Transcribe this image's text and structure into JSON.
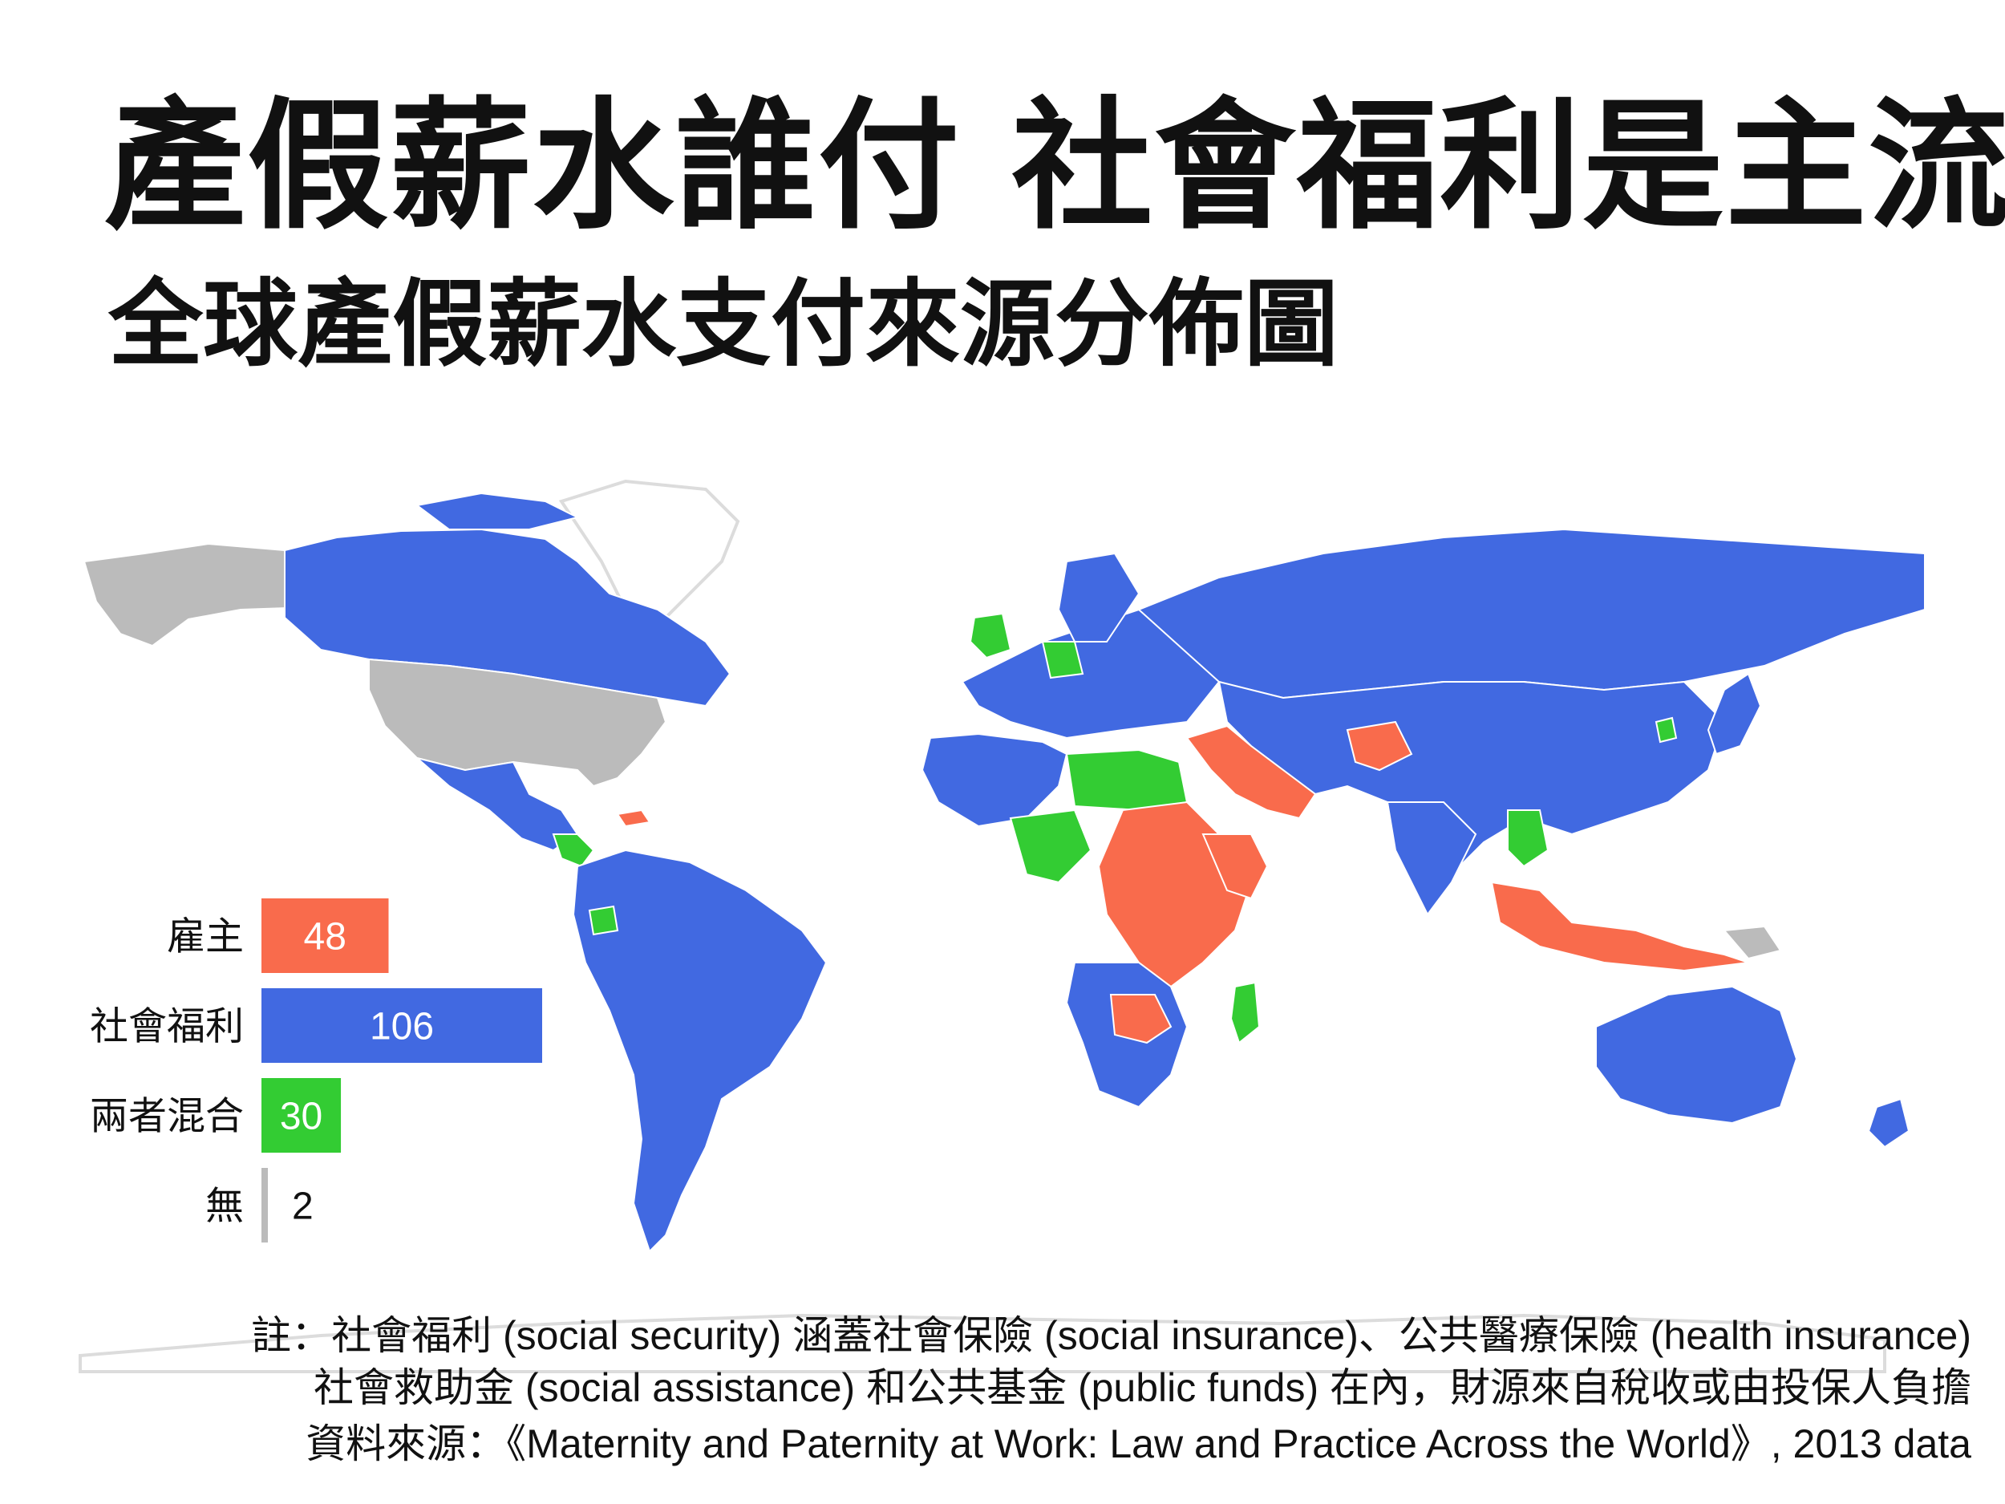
{
  "title": "產假薪水誰付  社會福利是主流",
  "subtitle": "全球產假薪水支付來源分佈圖",
  "colors": {
    "employer": "#F96B4C",
    "social_security": "#4169E1",
    "mixed": "#33CC33",
    "none": "#BBBBBB",
    "background": "#FFFFFF"
  },
  "chart_data": {
    "type": "bar",
    "orientation": "horizontal",
    "categories": [
      "雇主",
      "社會福利",
      "兩者混合",
      "無"
    ],
    "values": [
      48,
      106,
      30,
      2
    ],
    "data_labels": [
      "48",
      "106",
      "30",
      "2"
    ],
    "legend_placement": "bottom-left",
    "grid": false
  },
  "notes": {
    "line1": "註：社會福利 (social security) 涵蓋社會保險 (social insurance)、公共醫療保險 (health insurance)",
    "line2": "社會救助金 (social assistance) 和公共基金 (public funds) 在內，財源來自稅收或由投保人負擔",
    "source": "資料來源：《Maternity and Paternity at Work: Law and Practice Across the World》, 2013 data"
  }
}
